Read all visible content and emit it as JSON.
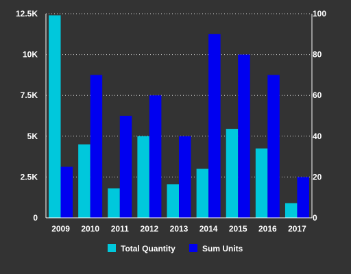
{
  "chart_data": {
    "type": "bar",
    "categories": [
      "2009",
      "2010",
      "2011",
      "2012",
      "2013",
      "2014",
      "2015",
      "2016",
      "2017"
    ],
    "series": [
      {
        "name": "Total Quantity",
        "axis": "left",
        "color": "#00c8dc",
        "values": [
          12400,
          4500,
          1800,
          5000,
          2050,
          3000,
          5450,
          4250,
          900
        ]
      },
      {
        "name": "Sum Units",
        "axis": "right",
        "color": "#0000f0",
        "values": [
          25,
          70,
          50,
          60,
          40,
          90,
          80,
          70,
          20
        ]
      }
    ],
    "y_left": {
      "ylim": [
        0,
        12500
      ],
      "ticks": [
        0,
        2500,
        5000,
        7500,
        10000,
        12500
      ],
      "tick_labels": [
        "0",
        "2.5K",
        "5K",
        "7.5K",
        "10K",
        "12.5K"
      ]
    },
    "y_right": {
      "ylim": [
        0,
        100
      ],
      "ticks": [
        0,
        20,
        40,
        60,
        80,
        100
      ],
      "tick_labels": [
        "0",
        "20",
        "40",
        "60",
        "80",
        "100"
      ]
    },
    "title": "",
    "xlabel": "",
    "ylabel": "",
    "grid": true,
    "legend_position": "bottom-center"
  }
}
